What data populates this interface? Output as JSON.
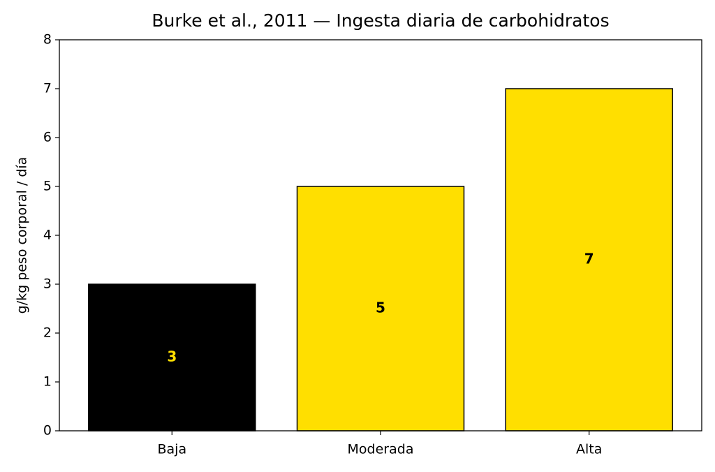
{
  "chart_data": {
    "type": "bar",
    "title": "Burke et al., 2011 — Ingesta diaria de carbohidratos",
    "y_label": "g/kg peso corporal / día",
    "categories": [
      "Baja",
      "Moderada",
      "Alta"
    ],
    "values": [
      3,
      5,
      7
    ],
    "colors": [
      "#000000",
      "#ffdf00",
      "#ffdf00"
    ],
    "label_colors": [
      "#ffdf00",
      "#000000",
      "#000000"
    ],
    "edge_color": "#000000",
    "ylim": [
      0,
      8
    ],
    "yticks": [
      0,
      1,
      2,
      3,
      4,
      5,
      6,
      7,
      8
    ],
    "grid": false
  }
}
